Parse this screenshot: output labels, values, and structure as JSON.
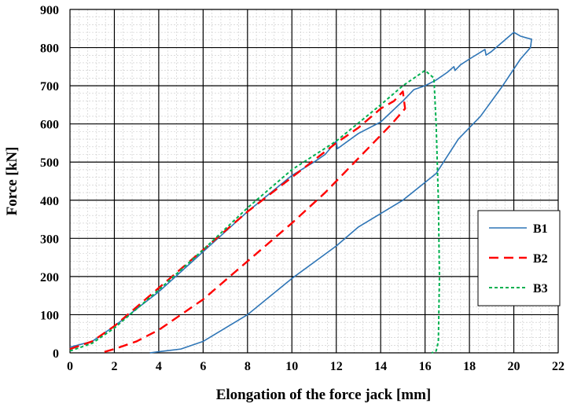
{
  "chart_data": {
    "type": "line",
    "title": "",
    "xlabel": "Elongation of the force jack [mm]",
    "ylabel": "Force [kN]",
    "xlim": [
      0,
      22
    ],
    "ylim": [
      0,
      900
    ],
    "x_ticks": [
      0,
      2,
      4,
      6,
      8,
      10,
      12,
      14,
      16,
      18,
      20,
      22
    ],
    "y_ticks": [
      0,
      100,
      200,
      300,
      400,
      500,
      600,
      700,
      800,
      900
    ],
    "grid": {
      "major": true,
      "minor": true
    },
    "legend": {
      "position": "right",
      "entries": [
        "B1",
        "B2",
        "B3"
      ]
    },
    "series": [
      {
        "name": "B1",
        "color": "#2e75b6",
        "dash": "solid",
        "points": [
          [
            0,
            15
          ],
          [
            1,
            30
          ],
          [
            2,
            70
          ],
          [
            4,
            160
          ],
          [
            6,
            265
          ],
          [
            8,
            370
          ],
          [
            10,
            465
          ],
          [
            11,
            500
          ],
          [
            11.5,
            520
          ],
          [
            12,
            555
          ],
          [
            12.05,
            535
          ],
          [
            13,
            575
          ],
          [
            14,
            605
          ],
          [
            15,
            660
          ],
          [
            15.5,
            690
          ],
          [
            16,
            700
          ],
          [
            16.5,
            715
          ],
          [
            17,
            735
          ],
          [
            17.3,
            750
          ],
          [
            17.35,
            740
          ],
          [
            17.6,
            755
          ],
          [
            18,
            770
          ],
          [
            18.7,
            795
          ],
          [
            18.75,
            780
          ],
          [
            19,
            790
          ],
          [
            19.5,
            815
          ],
          [
            20,
            840
          ],
          [
            20.3,
            830
          ],
          [
            20.6,
            825
          ],
          [
            20.8,
            822
          ],
          [
            20.75,
            800
          ],
          [
            20.3,
            770
          ],
          [
            19.5,
            700
          ],
          [
            18.5,
            620
          ],
          [
            17.5,
            560
          ],
          [
            16.5,
            470
          ],
          [
            15,
            400
          ],
          [
            13,
            330
          ],
          [
            12,
            280
          ],
          [
            10,
            195
          ],
          [
            8,
            100
          ],
          [
            6,
            30
          ],
          [
            5,
            10
          ],
          [
            4,
            3
          ],
          [
            3.6,
            0
          ]
        ]
      },
      {
        "name": "B2",
        "color": "#ff0000",
        "dash": "long-dash",
        "points": [
          [
            0,
            10
          ],
          [
            1,
            30
          ],
          [
            2,
            70
          ],
          [
            4,
            170
          ],
          [
            6,
            270
          ],
          [
            8,
            370
          ],
          [
            10,
            460
          ],
          [
            12,
            550
          ],
          [
            13,
            590
          ],
          [
            14,
            640
          ],
          [
            14.6,
            660
          ],
          [
            15,
            685
          ],
          [
            15.1,
            640
          ],
          [
            14.5,
            600
          ],
          [
            13.5,
            540
          ],
          [
            12.5,
            480
          ],
          [
            11.5,
            420
          ],
          [
            10,
            340
          ],
          [
            8,
            240
          ],
          [
            6,
            140
          ],
          [
            4,
            60
          ],
          [
            3,
            30
          ],
          [
            2,
            10
          ],
          [
            1.4,
            0
          ]
        ]
      },
      {
        "name": "B3",
        "color": "#00b050",
        "dash": "short-dash",
        "points": [
          [
            0,
            5
          ],
          [
            1,
            25
          ],
          [
            2,
            65
          ],
          [
            4,
            165
          ],
          [
            6,
            270
          ],
          [
            8,
            380
          ],
          [
            10,
            480
          ],
          [
            12,
            555
          ],
          [
            14,
            650
          ],
          [
            15,
            700
          ],
          [
            15.5,
            720
          ],
          [
            16,
            740
          ],
          [
            16.2,
            730
          ],
          [
            16.4,
            720
          ],
          [
            16.5,
            600
          ],
          [
            16.6,
            400
          ],
          [
            16.65,
            200
          ],
          [
            16.6,
            30
          ],
          [
            16.5,
            5
          ],
          [
            16.3,
            0
          ]
        ]
      }
    ]
  }
}
